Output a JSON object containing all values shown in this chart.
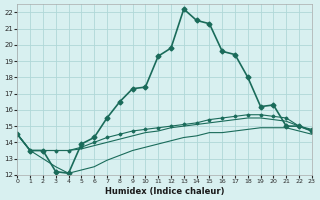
{
  "xlabel": "Humidex (Indice chaleur)",
  "background_color": "#d8f0f0",
  "grid_color": "#b0d8d8",
  "line_color": "#1a6b5a",
  "xlim": [
    0,
    23
  ],
  "ylim": [
    12,
    22.5
  ],
  "yticks": [
    12,
    13,
    14,
    15,
    16,
    17,
    18,
    19,
    20,
    21,
    22
  ],
  "xticks": [
    0,
    1,
    2,
    3,
    4,
    5,
    6,
    7,
    8,
    9,
    10,
    11,
    12,
    13,
    14,
    15,
    16,
    17,
    18,
    19,
    20,
    21,
    22,
    23
  ],
  "series1_x": [
    0,
    1,
    2,
    3,
    4,
    5,
    6,
    7,
    8,
    9,
    10,
    11,
    12,
    13,
    14,
    15,
    16,
    17,
    18,
    19,
    20,
    21,
    22,
    23
  ],
  "series1_y": [
    14.5,
    13.5,
    13.5,
    12.2,
    12.1,
    13.9,
    14.3,
    15.5,
    16.5,
    17.3,
    17.4,
    19.3,
    19.8,
    22.2,
    21.5,
    21.3,
    19.6,
    19.4,
    18.0,
    16.2,
    16.3,
    15.0,
    15.0,
    14.7
  ],
  "series2_x": [
    0,
    1,
    2,
    3,
    4,
    5,
    6,
    7,
    8,
    9,
    10,
    11,
    12,
    13,
    14,
    15,
    16,
    17,
    18,
    19,
    20,
    21,
    22,
    23
  ],
  "series2_y": [
    14.5,
    13.5,
    13.5,
    13.5,
    13.5,
    13.7,
    14.0,
    14.3,
    14.5,
    14.7,
    14.8,
    14.9,
    15.0,
    15.1,
    15.2,
    15.4,
    15.5,
    15.6,
    15.7,
    15.7,
    15.6,
    15.5,
    15.0,
    14.8
  ],
  "series3_x": [
    0,
    1,
    2,
    3,
    4,
    5,
    6,
    7,
    8,
    9,
    10,
    11,
    12,
    13,
    14,
    15,
    16,
    17,
    18,
    19,
    20,
    21,
    22,
    23
  ],
  "series3_y": [
    14.5,
    13.5,
    13.5,
    13.5,
    13.5,
    13.6,
    13.8,
    14.0,
    14.2,
    14.4,
    14.6,
    14.7,
    14.9,
    15.0,
    15.1,
    15.2,
    15.3,
    15.4,
    15.5,
    15.5,
    15.4,
    15.3,
    15.0,
    14.7
  ],
  "series4_x": [
    0,
    1,
    2,
    3,
    4,
    5,
    6,
    7,
    8,
    9,
    10,
    11,
    12,
    13,
    14,
    15,
    16,
    17,
    18,
    19,
    20,
    21,
    22,
    23
  ],
  "series4_y": [
    14.5,
    13.5,
    13.0,
    12.5,
    12.1,
    12.3,
    12.5,
    12.9,
    13.2,
    13.5,
    13.7,
    13.9,
    14.1,
    14.3,
    14.4,
    14.6,
    14.6,
    14.7,
    14.8,
    14.9,
    14.9,
    14.9,
    14.7,
    14.5
  ]
}
